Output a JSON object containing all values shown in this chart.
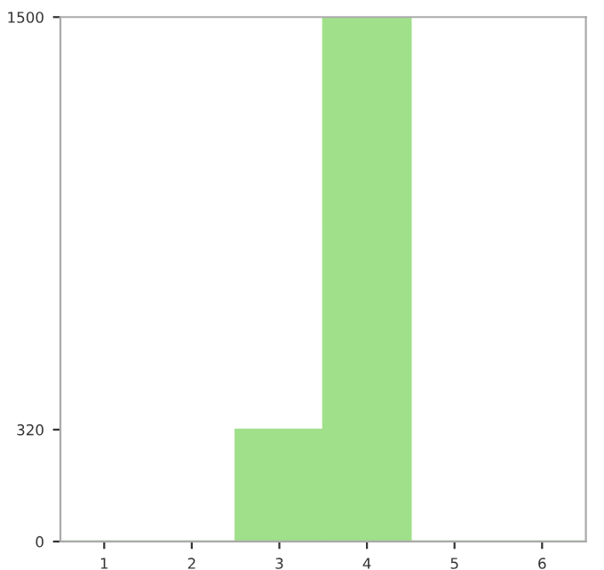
{
  "chart_data": {
    "type": "bar",
    "categories": [
      "1",
      "2",
      "3",
      "4",
      "5",
      "6"
    ],
    "values": [
      0,
      0,
      320,
      1500,
      0,
      0
    ],
    "color": "#a0e08a",
    "ylim": [
      0,
      1500
    ],
    "yticks": [
      0,
      320,
      1500
    ],
    "grid": false
  }
}
